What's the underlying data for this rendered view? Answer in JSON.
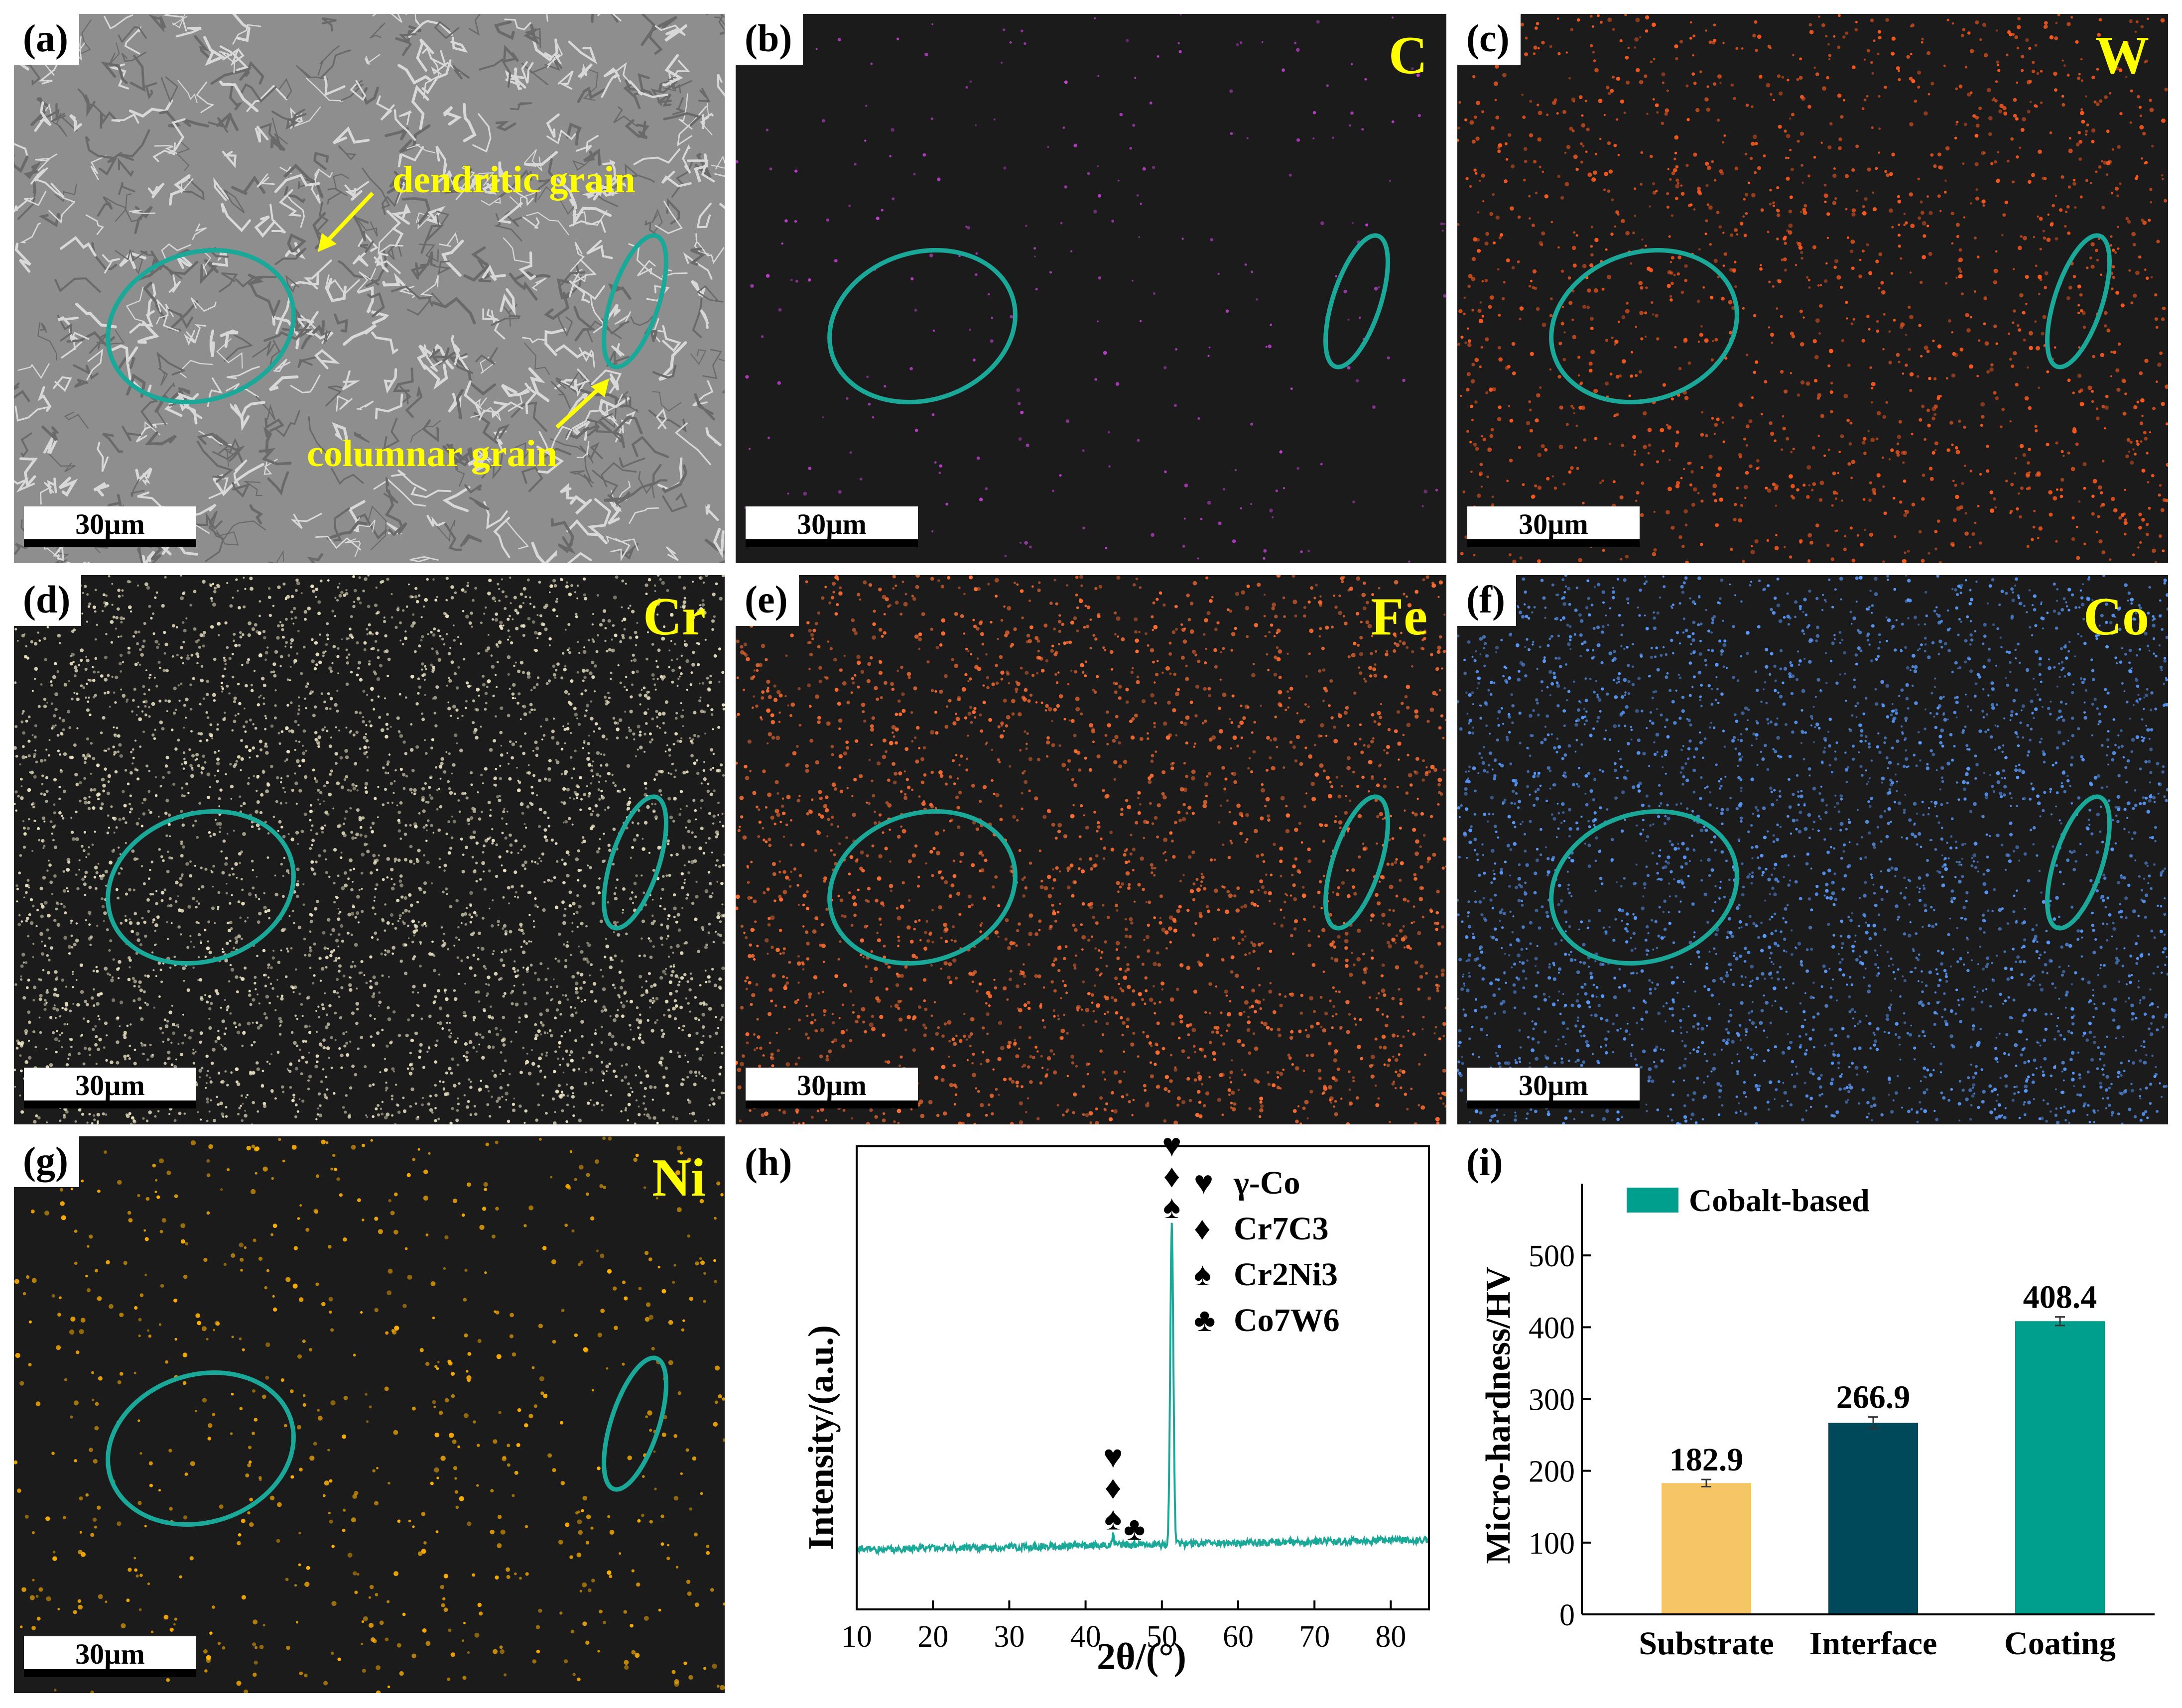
{
  "scale_bar_text": "30µm",
  "panels": {
    "a": {
      "label": "(a)",
      "annot_dendritic": "dendritic grain",
      "annot_columnar": "columnar grain"
    },
    "b": {
      "label": "(b)",
      "element": "C",
      "dot_color": "#c040d0"
    },
    "c": {
      "label": "(c)",
      "element": "W",
      "dot_color": "#ff5a1e"
    },
    "d": {
      "label": "(d)",
      "element": "Cr",
      "dot_color": "#e8e0c0"
    },
    "e": {
      "label": "(e)",
      "element": "Fe",
      "dot_color": "#ff6e32"
    },
    "f": {
      "label": "(f)",
      "element": "Co",
      "dot_color": "#5a9bff"
    },
    "g": {
      "label": "(g)",
      "element": "Ni",
      "dot_color": "#ffb000"
    },
    "h": {
      "label": "(h)"
    },
    "i": {
      "label": "(i)"
    }
  },
  "colors": {
    "ellipse": "#1aa898",
    "annotation": "#ffff00",
    "xrd_line": "#1aa898"
  },
  "xrd": {
    "type": "line",
    "xlabel": "2θ/(°)",
    "ylabel": "Intensity/(a.u.)",
    "xlim": [
      10,
      85
    ],
    "xticks": [
      10,
      20,
      30,
      40,
      50,
      60,
      70,
      80
    ],
    "legend": [
      {
        "symbol": "♥",
        "phase": "γ-Co"
      },
      {
        "symbol": "♦",
        "phase": "Cr7C3"
      },
      {
        "symbol": "♠",
        "phase": "Cr2Ni3"
      },
      {
        "symbol": "♣",
        "phase": "Co7W6"
      }
    ],
    "peaks": [
      {
        "x": 43.6,
        "intensity": 0.03,
        "symbols": [
          "♥",
          "♦",
          "♠"
        ]
      },
      {
        "x": 46.4,
        "intensity": 0.0,
        "symbols": [
          "♣"
        ]
      },
      {
        "x": 51.3,
        "intensity": 0.95,
        "symbols": [
          "♥",
          "♦",
          "♠"
        ]
      }
    ]
  },
  "chart_data": {
    "type": "bar",
    "categories": [
      "Substrate",
      "Interface",
      "Coating"
    ],
    "values": [
      182.9,
      266.9,
      408.4
    ],
    "errors": [
      5,
      8,
      6
    ],
    "value_labels": [
      "182.9",
      "266.9",
      "408.4"
    ],
    "colors": [
      "#f5c566",
      "#00495a",
      "#009e8c"
    ],
    "legend": "Cobalt-based",
    "ylabel": "Micro-hardness/HV",
    "ylim": [
      0,
      600
    ],
    "yticks": [
      0,
      100,
      200,
      300,
      400,
      500
    ]
  }
}
